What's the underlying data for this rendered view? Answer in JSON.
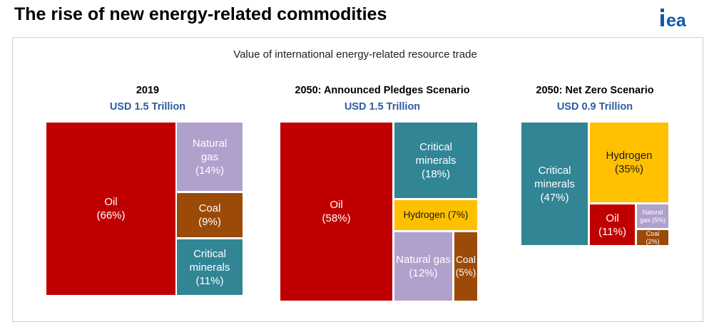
{
  "header": {
    "title": "The rise of new energy-related commodities",
    "logo_text": "iea",
    "logo_color": "#0d5aa7"
  },
  "colors": {
    "Oil": "#c00000",
    "Natural gas": "#b0a0cc",
    "Coal": "#9c4a08",
    "Critical minerals": "#318595",
    "Hydrogen": "#ffc000",
    "value_text": "#2e5c9e"
  },
  "chart_data": {
    "type": "treemap",
    "title": "Value of international energy-related resource trade",
    "panels": [
      {
        "title": "2019",
        "value_label": "USD 1.5 Trillion",
        "total_trillion_usd": 1.5,
        "items": [
          {
            "name": "Oil",
            "share": 66,
            "label": "Oil\n(66%)"
          },
          {
            "name": "Natural gas",
            "share": 14,
            "label": "Natural\ngas\n(14%)"
          },
          {
            "name": "Coal",
            "share": 9,
            "label": "Coal\n(9%)"
          },
          {
            "name": "Critical minerals",
            "share": 11,
            "label": "Critical\nminerals\n(11%)"
          }
        ]
      },
      {
        "title": "2050: Announced Pledges Scenario",
        "value_label": "USD 1.5 Trillion",
        "total_trillion_usd": 1.5,
        "items": [
          {
            "name": "Oil",
            "share": 58,
            "label": "Oil\n(58%)"
          },
          {
            "name": "Critical minerals",
            "share": 18,
            "label": "Critical\nminerals\n(18%)"
          },
          {
            "name": "Hydrogen",
            "share": 7,
            "label": "Hydrogen (7%)"
          },
          {
            "name": "Natural gas",
            "share": 12,
            "label": "Natural gas\n(12%)"
          },
          {
            "name": "Coal",
            "share": 5,
            "label": "Coal\n(5%)"
          }
        ]
      },
      {
        "title": "2050: Net Zero Scenario",
        "value_label": "USD 0.9 Trillion",
        "total_trillion_usd": 0.9,
        "items": [
          {
            "name": "Critical minerals",
            "share": 47,
            "label": "Critical\nminerals\n(47%)"
          },
          {
            "name": "Hydrogen",
            "share": 35,
            "label": "Hydrogen\n(35%)"
          },
          {
            "name": "Oil",
            "share": 11,
            "label": "Oil\n(11%)"
          },
          {
            "name": "Natural gas",
            "share": 5,
            "label": "Natural\ngas (5%)"
          },
          {
            "name": "Coal",
            "share": 2,
            "label": "Coal\n(2%)"
          }
        ]
      }
    ]
  }
}
